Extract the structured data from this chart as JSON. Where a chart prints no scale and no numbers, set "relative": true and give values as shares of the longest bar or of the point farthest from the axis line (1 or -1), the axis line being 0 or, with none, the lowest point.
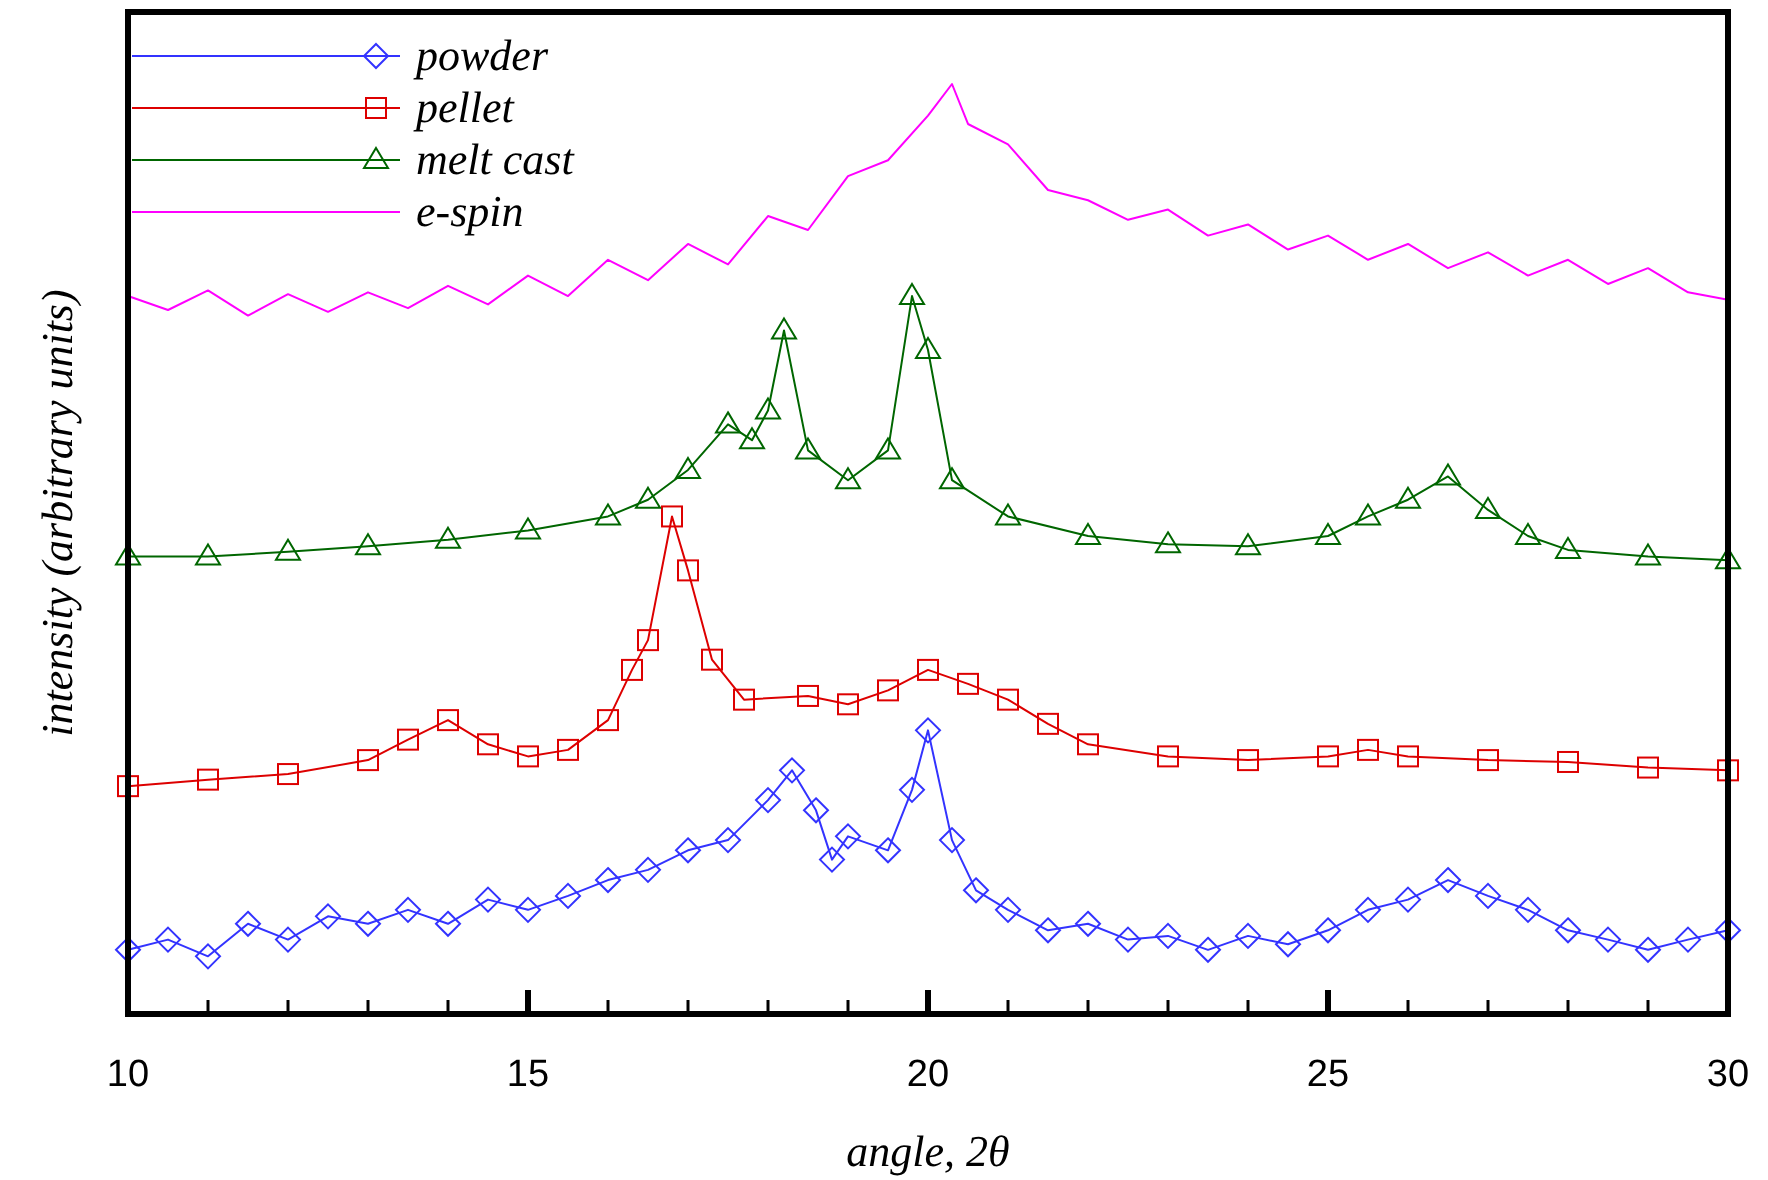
{
  "chart_data": {
    "type": "line",
    "relative": true,
    "xlabel": "angle, 2θ",
    "ylabel": "intensity (arbitrary units)",
    "xlim": [
      10,
      30
    ],
    "xticks": [
      10,
      {
        "value": 11,
        "label": null
      },
      {
        "value": 12,
        "label": null
      },
      {
        "value": 13,
        "label": null
      },
      {
        "value": 14,
        "label": null
      },
      15,
      {
        "value": 16,
        "label": null
      },
      {
        "value": 17,
        "label": null
      },
      {
        "value": 18,
        "label": null
      },
      {
        "value": 19,
        "label": null
      },
      20,
      {
        "value": 21,
        "label": null
      },
      {
        "value": 22,
        "label": null
      },
      {
        "value": 23,
        "label": null
      },
      {
        "value": 24,
        "label": null
      },
      25,
      {
        "value": 26,
        "label": null
      },
      {
        "value": 27,
        "label": null
      },
      {
        "value": 28,
        "label": null
      },
      {
        "value": 29,
        "label": null
      },
      30
    ],
    "grid": false,
    "legend": "top left",
    "line_style": "solid",
    "series": [
      {
        "name": "powder",
        "color": "#3333ff",
        "marker": "diamond",
        "x": [
          10,
          10.5,
          11,
          11.5,
          12,
          12.5,
          13,
          13.5,
          14,
          14.5,
          15,
          15.5,
          16,
          16.5,
          17,
          17.5,
          18,
          18.3,
          18.6,
          18.8,
          19,
          19.5,
          19.8,
          20,
          20.3,
          20.6,
          21,
          21.5,
          22,
          22.5,
          23,
          23.5,
          24,
          24.5,
          25,
          25.5,
          26,
          26.5,
          27,
          27.5,
          28,
          28.5,
          29,
          29.5,
          30
        ],
        "values": [
          0.069,
          0.08,
          0.062,
          0.097,
          0.08,
          0.105,
          0.097,
          0.112,
          0.097,
          0.123,
          0.112,
          0.127,
          0.144,
          0.155,
          0.176,
          0.187,
          0.23,
          0.262,
          0.219,
          0.166,
          0.191,
          0.176,
          0.241,
          0.305,
          0.187,
          0.133,
          0.112,
          0.09,
          0.097,
          0.08,
          0.084,
          0.069,
          0.084,
          0.075,
          0.09,
          0.112,
          0.123,
          0.144,
          0.127,
          0.112,
          0.09,
          0.08,
          0.069,
          0.08,
          0.09
        ]
      },
      {
        "name": "pellet",
        "color": "#dd0000",
        "marker": "square",
        "x": [
          10,
          11,
          12,
          13,
          13.5,
          14,
          14.5,
          15,
          15.5,
          16,
          16.3,
          16.5,
          16.8,
          17,
          17.3,
          17.7,
          18.5,
          19,
          19.5,
          20,
          20.5,
          21,
          21.5,
          22,
          23,
          24,
          25,
          25.5,
          26,
          27,
          28,
          29,
          30
        ],
        "values": [
          0.245,
          0.252,
          0.258,
          0.273,
          0.295,
          0.316,
          0.29,
          0.277,
          0.284,
          0.316,
          0.37,
          0.402,
          0.535,
          0.477,
          0.381,
          0.338,
          0.342,
          0.333,
          0.348,
          0.37,
          0.355,
          0.338,
          0.312,
          0.29,
          0.277,
          0.273,
          0.277,
          0.284,
          0.277,
          0.273,
          0.271,
          0.265,
          0.262
        ]
      },
      {
        "name": "melt cast",
        "color": "#006600",
        "marker": "triangle",
        "x": [
          10,
          11,
          12,
          13,
          14,
          15,
          16,
          16.5,
          17,
          17.5,
          17.8,
          18,
          18.2,
          18.5,
          19,
          19.5,
          19.8,
          20,
          20.3,
          21,
          22,
          23,
          24,
          25,
          25.5,
          26,
          26.5,
          27,
          27.5,
          28,
          29,
          30
        ],
        "values": [
          0.492,
          0.492,
          0.497,
          0.503,
          0.51,
          0.52,
          0.535,
          0.553,
          0.585,
          0.634,
          0.617,
          0.649,
          0.735,
          0.606,
          0.574,
          0.606,
          0.772,
          0.714,
          0.574,
          0.535,
          0.514,
          0.505,
          0.503,
          0.514,
          0.535,
          0.553,
          0.578,
          0.542,
          0.514,
          0.499,
          0.492,
          0.488
        ]
      },
      {
        "name": "e-spin",
        "color": "#ff00ff",
        "marker": "none",
        "x": [
          10,
          10.5,
          11,
          11.5,
          12,
          12.5,
          13,
          13.5,
          14,
          14.5,
          15,
          15.5,
          16,
          16.5,
          17,
          17.5,
          18,
          18.5,
          19,
          19.5,
          20,
          20.3,
          20.5,
          21,
          21.5,
          22,
          22.5,
          23,
          23.5,
          24,
          24.5,
          25,
          25.5,
          26,
          26.5,
          27,
          27.5,
          28,
          28.5,
          29,
          29.5,
          30
        ],
        "values": [
          0.772,
          0.757,
          0.778,
          0.751,
          0.774,
          0.755,
          0.776,
          0.759,
          0.783,
          0.763,
          0.794,
          0.772,
          0.811,
          0.789,
          0.828,
          0.806,
          0.858,
          0.843,
          0.901,
          0.918,
          0.966,
          1.0,
          0.957,
          0.935,
          0.886,
          0.875,
          0.854,
          0.865,
          0.837,
          0.849,
          0.822,
          0.837,
          0.811,
          0.828,
          0.802,
          0.819,
          0.794,
          0.811,
          0.785,
          0.802,
          0.776,
          0.768
        ]
      }
    ]
  }
}
